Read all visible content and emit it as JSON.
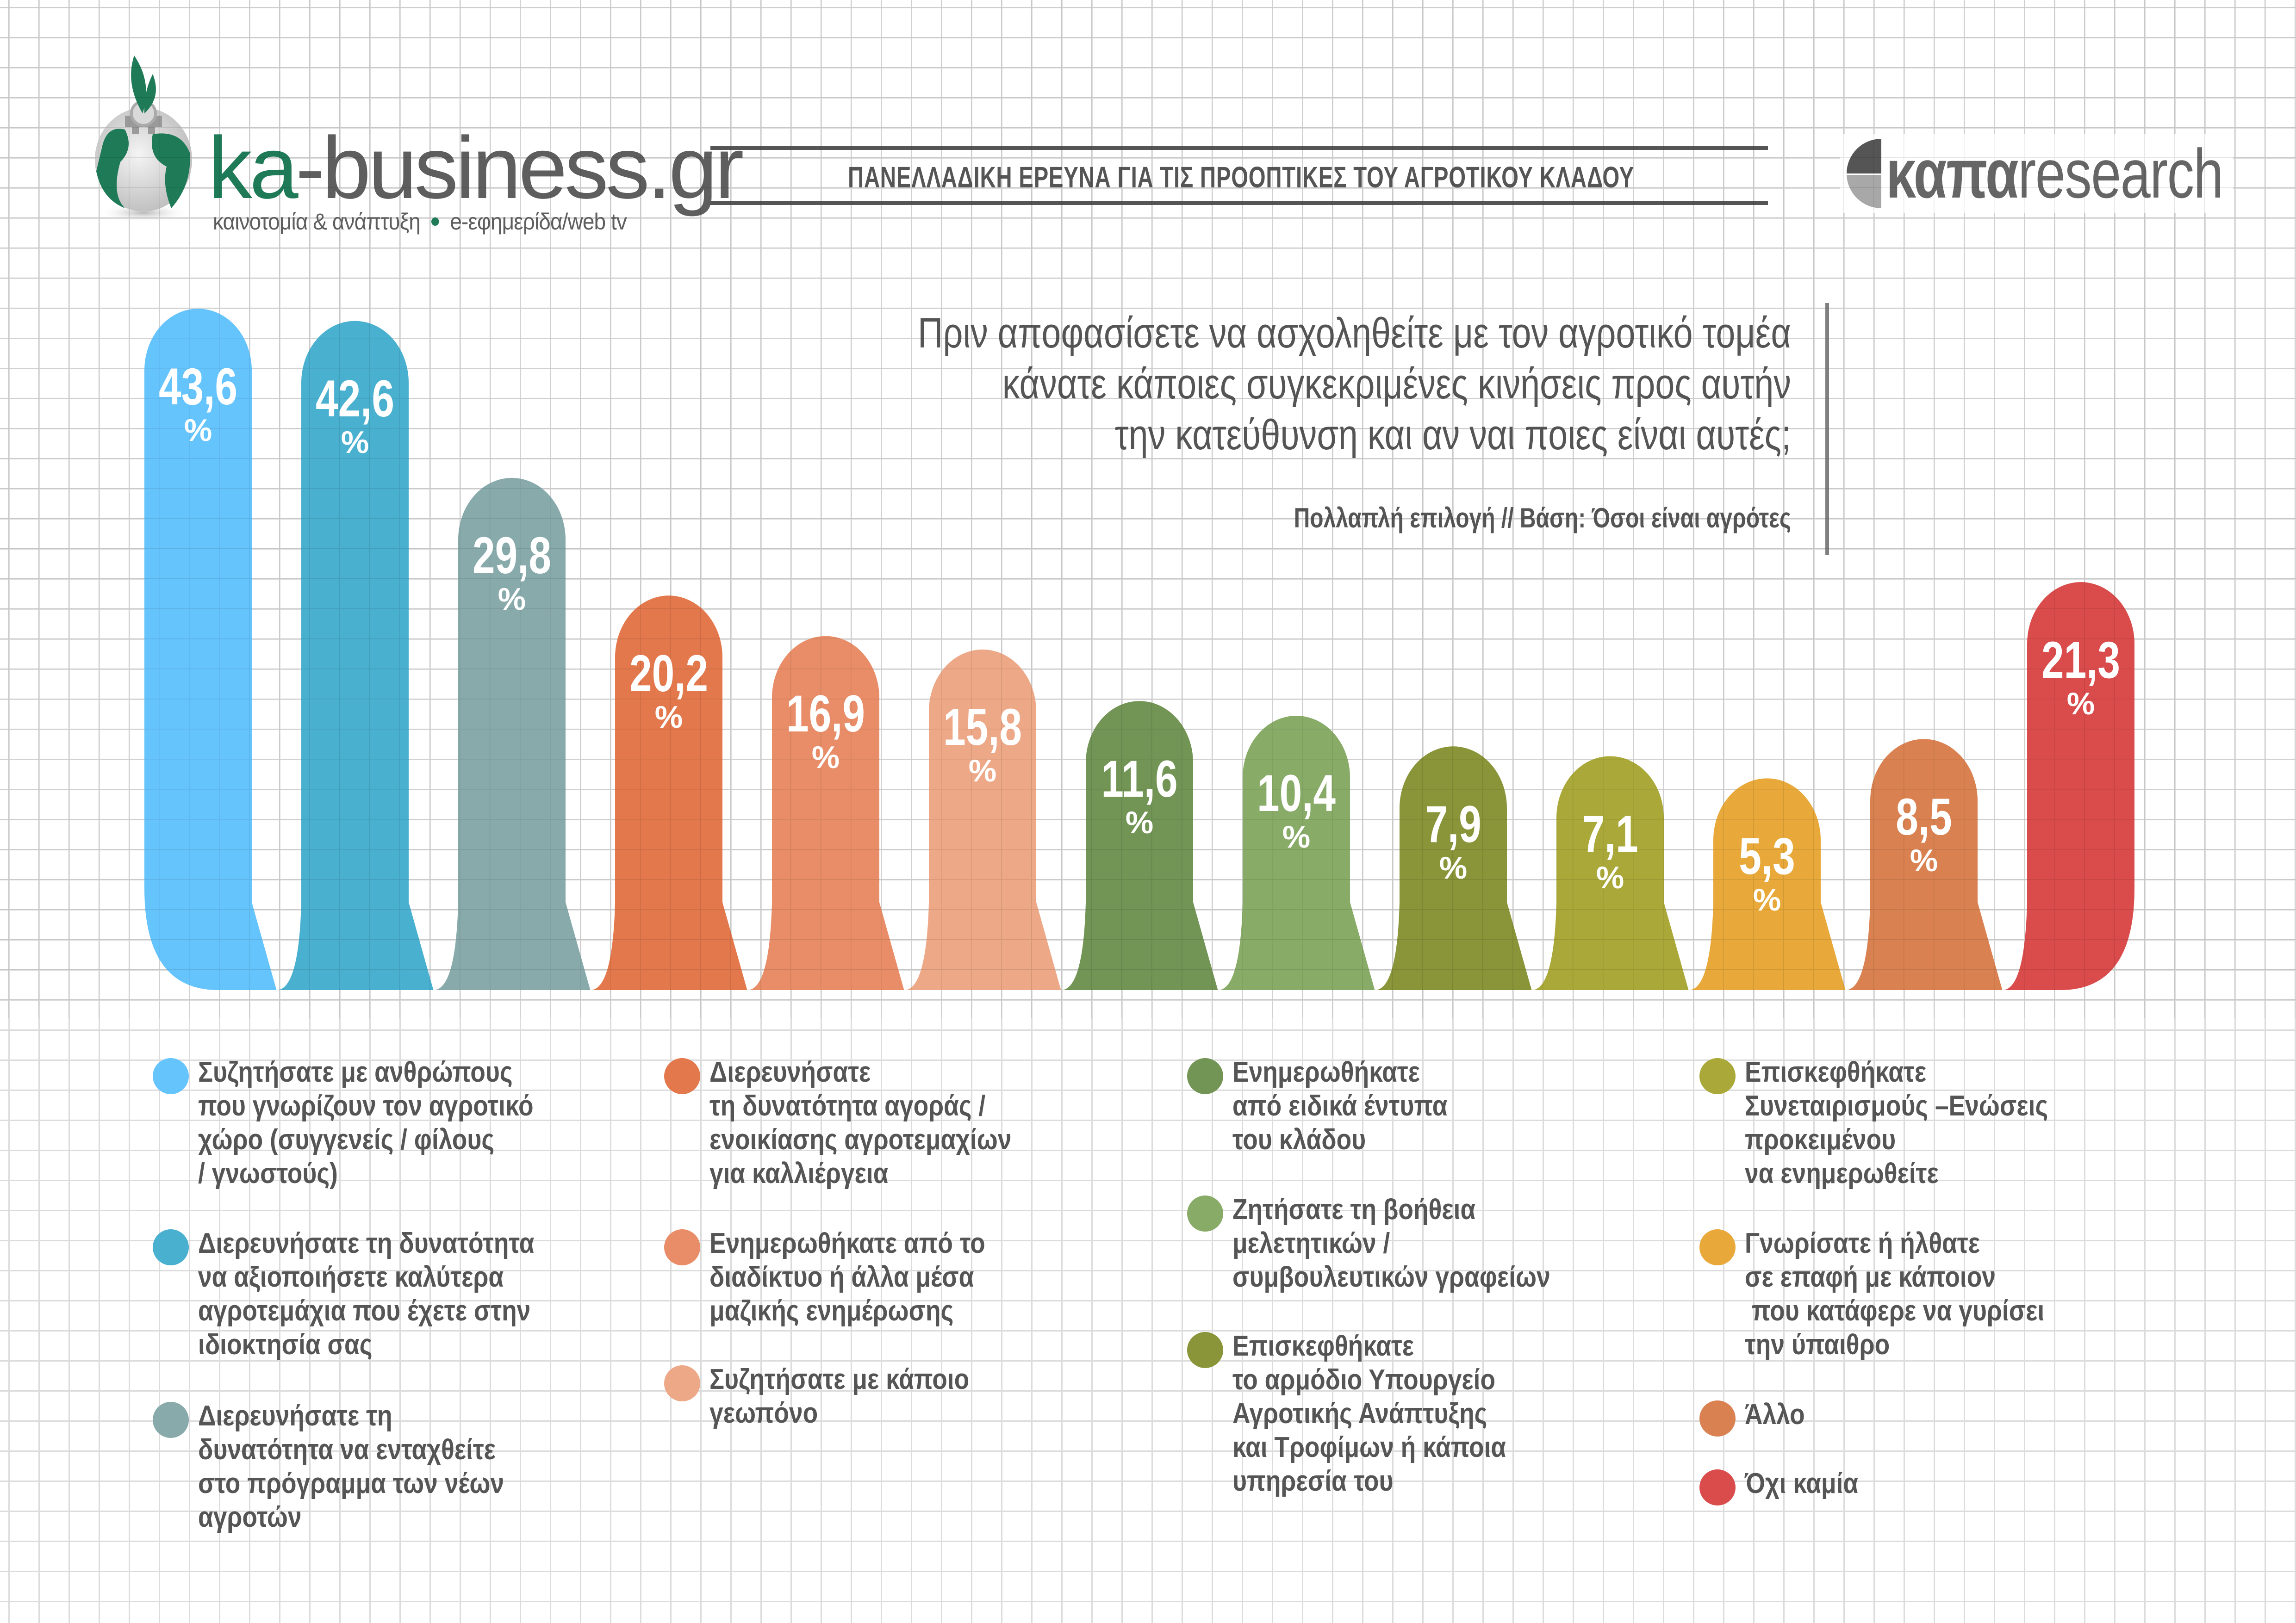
{
  "header": {
    "logo_left": {
      "brand_primary": "ka",
      "brand_secondary": "-business.gr",
      "tagline_left": "καινοτομία & ανάπτυξη",
      "tagline_right": "e-εφημερίδα/web tv",
      "brand_color": "#1e7a57"
    },
    "title": "ΠΑΝΕΛΛΑΔΙΚΗ ΕΡΕΥΝΑ ΓΙΑ ΤΙΣ ΠΡΟΟΠΤΙΚΕΣ ΤΟΥ ΑΓΡΟΤΙΚΟΥ ΚΛΑΔΟΥ",
    "logo_right": {
      "brand_primary": "καπα",
      "brand_secondary": "research"
    }
  },
  "question": {
    "lines": [
      "Πριν αποφασίσετε να ασχοληθείτε με τον αγροτικό τομέα",
      "κάνατε κάποιες συγκεκριμένες κινήσεις προς αυτήν",
      "την κατεύθυνση και αν ναι ποιες είναι αυτές;"
    ],
    "note": "Πολλαπλή επιλογή // Βάση: Όσοι είναι αγρότες"
  },
  "chart_data": {
    "type": "bar",
    "title": "Πριν αποφασίσετε να ασχοληθείτε με τον αγροτικό τομέα κάνατε κάποιες συγκεκριμένες κινήσεις προς αυτήν την κατεύθυνση και αν ναι ποιες είναι αυτές;",
    "subtitle": "Πολλαπλή επιλογή // Βάση: Όσοι είναι αγρότες",
    "xlabel": "",
    "ylabel": "%",
    "unit": "%",
    "decimal_separator": ",",
    "grid": false,
    "legend_position": "bottom",
    "categories": [
      "Συζητήσατε με ανθρώπους που γνωρίζουν τον αγροτικό χώρο (συγγενείς / φίλους / γνωστούς)",
      "Διερευνήσατε τη δυνατότητα να αξιοποιήσετε καλύτερα αγροτεμάχια που έχετε στην ιδιοκτησία σας",
      "Διερευνήσατε τη δυνατότητα να ενταχθείτε στο πρόγραμμα των νέων αγροτών",
      "Διερευνήσατε τη δυνατότητα αγοράς / ενοικίασης αγροτεμαχίων για καλλιέργεια",
      "Ενημερωθήκατε από το διαδίκτυο ή άλλα μέσα μαζικής ενημέρωσης",
      "Συζητήσατε με κάποιο γεωπόνο",
      "Ενημερωθήκατε από ειδικά έντυπα του κλάδου",
      "Ζητήσατε τη βοήθεια μελετητικών / συμβουλευτικών γραφείων",
      "Επισκεφθήκατε το αρμόδιο Υπουργείο Αγροτικής Ανάπτυξης και Τροφίμων ή κάποια υπηρεσία του",
      "Επισκεφθήκατε Συνεταιρισμούς –Ενώσεις προκειμένου να ενημερωθείτε",
      "Γνωρίσατε ή ήλθατε σε επαφή με κάποιον που κατάφερε να γυρίσει την ύπαιθρο",
      "Άλλο",
      "Όχι καμία"
    ],
    "values": [
      43.6,
      42.6,
      29.8,
      20.2,
      16.9,
      15.8,
      11.6,
      10.4,
      7.9,
      7.1,
      5.3,
      8.5,
      21.3
    ],
    "value_labels": [
      "43,6",
      "42,6",
      "29,8",
      "20,2",
      "16,9",
      "15,8",
      "11,6",
      "10,4",
      "7,9",
      "7,1",
      "5,3",
      "8,5",
      "21,3"
    ],
    "percent_sign": "%",
    "colors": [
      "#66c4fd",
      "#4ab0d0",
      "#88aaab",
      "#e3784c",
      "#e88d68",
      "#eda887",
      "#729455",
      "#88ab68",
      "#8a9438",
      "#a9a838",
      "#e8a93a",
      "#d98150",
      "#da4c4c"
    ]
  },
  "legend": {
    "columns": [
      {
        "items": [
          {
            "index": 0,
            "text": "Συζητήσατε με ανθρώπους\nπου γνωρίζουν τον αγροτικό\nχώρο (συγγενείς / φίλους\n/ γνωστούς)"
          },
          {
            "index": 1,
            "text": "Διερευνήσατε τη δυνατότητα\nνα αξιοποιήσετε καλύτερα\nαγροτεμάχια που έχετε στην\nιδιοκτησία σας"
          },
          {
            "index": 2,
            "text": "Διερευνήσατε τη\nδυνατότητα να ενταχθείτε\nστο πρόγραμμα των νέων\nαγροτών"
          }
        ]
      },
      {
        "items": [
          {
            "index": 3,
            "text": "Διερευνήσατε\nτη δυνατότητα αγοράς /\nενοικίασης αγροτεμαχίων\nγια καλλιέργεια"
          },
          {
            "index": 4,
            "text": "Ενημερωθήκατε από το\nδιαδίκτυο ή άλλα μέσα\nμαζικής ενημέρωσης"
          },
          {
            "index": 5,
            "text": "Συζητήσατε με κάποιο\nγεωπόνο"
          }
        ]
      },
      {
        "items": [
          {
            "index": 6,
            "text": "Ενημερωθήκατε\nαπό ειδικά έντυπα\nτου κλάδου"
          },
          {
            "index": 7,
            "text": "Ζητήσατε τη βοήθεια\nμελετητικών /\nσυμβουλευτικών γραφείων"
          },
          {
            "index": 8,
            "text": "Επισκεφθήκατε\nτο αρμόδιο Υπουργείο\nΑγροτικής Ανάπτυξης\nκαι Τροφίμων ή κάποια\nυπηρεσία του"
          }
        ]
      },
      {
        "items": [
          {
            "index": 9,
            "text": "Επισκεφθήκατε\nΣυνεταιρισμούς –Ενώσεις\nπροκειμένου\nνα ενημερωθείτε"
          },
          {
            "index": 10,
            "text": "Γνωρίσατε ή ήλθατε\nσε επαφή με κάποιον\n που κατάφερε να γυρίσει\nτην ύπαιθρο"
          },
          {
            "index": 11,
            "text": "Άλλο"
          },
          {
            "index": 12,
            "text": "Όχι καμία"
          }
        ]
      }
    ]
  }
}
